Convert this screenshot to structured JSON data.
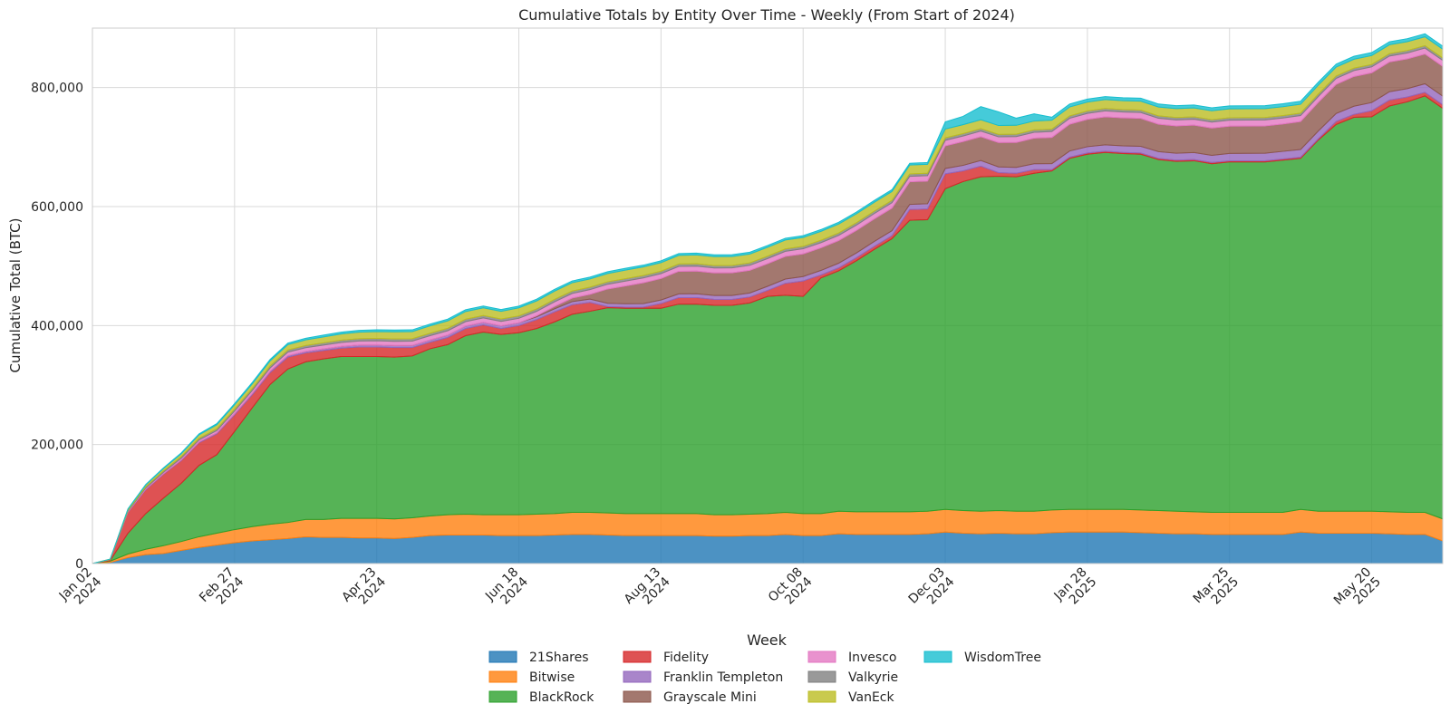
{
  "chart_data": {
    "type": "area",
    "stacked": true,
    "title": "Cumulative Totals by Entity Over Time - Weekly (From Start of 2024)",
    "xlabel": "Week",
    "ylabel": "Cumulative Total (BTC)",
    "ylim": [
      0,
      900000
    ],
    "yticks": [
      0,
      200000,
      400000,
      600000,
      800000
    ],
    "ytick_labels": [
      "0",
      "200,000",
      "400,000",
      "600,000",
      "800,000"
    ],
    "grid": true,
    "legend_position": "bottom-center",
    "x_tick_labels": [
      {
        "week": 0,
        "line1": "Jan 02",
        "line2": "2024"
      },
      {
        "week": 8,
        "line1": "Feb 27",
        "line2": "2024"
      },
      {
        "week": 16,
        "line1": "Apr 23",
        "line2": "2024"
      },
      {
        "week": 24,
        "line1": "Jun 18",
        "line2": "2024"
      },
      {
        "week": 32,
        "line1": "Aug 13",
        "line2": "2024"
      },
      {
        "week": 40,
        "line1": "Oct 08",
        "line2": "2024"
      },
      {
        "week": 48,
        "line1": "Dec 03",
        "line2": "2024"
      },
      {
        "week": 56,
        "line1": "Jan 28",
        "line2": "2025"
      },
      {
        "week": 64,
        "line1": "Mar 25",
        "line2": "2025"
      },
      {
        "week": 72,
        "line1": "May 20",
        "line2": "2025"
      }
    ],
    "weeks": 77,
    "series": [
      {
        "name": "21Shares",
        "color": "#1f77b4",
        "values": [
          0,
          2000,
          10000,
          15000,
          17000,
          22000,
          27000,
          31000,
          35000,
          38000,
          40000,
          42000,
          45000,
          44000,
          44000,
          43000,
          43000,
          42000,
          44000,
          47000,
          48000,
          48000,
          48000,
          47000,
          47000,
          47000,
          48000,
          49000,
          49000,
          48000,
          47000,
          47000,
          47000,
          47000,
          47000,
          46000,
          46000,
          47000,
          47000,
          49000,
          47000,
          47000,
          50000,
          49000,
          49000,
          49000,
          49000,
          50000,
          53000,
          51000,
          50000,
          51000,
          50000,
          50000,
          52000,
          53000,
          53000,
          53000,
          53000,
          52000,
          51000,
          50000,
          50000,
          49000,
          49000,
          49000,
          49000,
          49000,
          53000,
          51000,
          51000,
          51000,
          51000,
          50000,
          49000,
          49000,
          38000
        ]
      },
      {
        "name": "Bitwise",
        "color": "#ff7f0e",
        "values": [
          0,
          2000,
          6000,
          9000,
          13000,
          15000,
          18000,
          20000,
          22000,
          24000,
          26000,
          27000,
          29000,
          30000,
          32000,
          33000,
          33000,
          33000,
          33000,
          33000,
          34000,
          35000,
          34000,
          35000,
          35000,
          36000,
          36000,
          37000,
          37000,
          37000,
          37000,
          37000,
          37000,
          37000,
          37000,
          36000,
          36000,
          36000,
          37000,
          37000,
          37000,
          37000,
          38000,
          38000,
          38000,
          38000,
          38000,
          38000,
          38000,
          38000,
          38000,
          38000,
          38000,
          38000,
          38000,
          38000,
          38000,
          38000,
          38000,
          38000,
          38000,
          38000,
          37000,
          37000,
          37000,
          37000,
          37000,
          37000,
          38000,
          37000,
          37000,
          37000,
          37000,
          37000,
          37000,
          37000,
          37000
        ]
      },
      {
        "name": "BlackRock",
        "color": "#2ca02c",
        "values": [
          0,
          1000,
          35000,
          60000,
          80000,
          98000,
          120000,
          132000,
          165000,
          200000,
          235000,
          258000,
          265000,
          270000,
          272000,
          272000,
          272000,
          272000,
          272000,
          281000,
          286000,
          300000,
          307000,
          303000,
          306000,
          312000,
          322000,
          333000,
          338000,
          345000,
          345000,
          345000,
          345000,
          352000,
          352000,
          352000,
          352000,
          355000,
          365000,
          365000,
          365000,
          396000,
          404000,
          422000,
          441000,
          459000,
          490000,
          490000,
          539000,
          553000,
          562000,
          562000,
          562000,
          568000,
          570000,
          590000,
          597000,
          600000,
          598000,
          598000,
          590000,
          588000,
          590000,
          586000,
          589000,
          589000,
          589000,
          592000,
          590000,
          624000,
          650000,
          662000,
          663000,
          682000,
          690000,
          700000,
          690000
        ]
      },
      {
        "name": "Fidelity",
        "color": "#d62728",
        "values": [
          0,
          1500,
          35000,
          40000,
          40000,
          38000,
          38000,
          35000,
          28000,
          22000,
          20000,
          20000,
          15000,
          14000,
          14000,
          16000,
          16000,
          16000,
          14000,
          11000,
          12000,
          12000,
          12000,
          10000,
          12000,
          15000,
          17000,
          16000,
          15000,
          2000,
          2000,
          2000,
          8000,
          11000,
          11000,
          10000,
          10000,
          10000,
          10000,
          20000,
          26000,
          5000,
          5000,
          5000,
          5000,
          5000,
          18000,
          18000,
          25000,
          18000,
          18000,
          6000,
          6000,
          6000,
          2000,
          2000,
          2000,
          2000,
          2000,
          2000,
          2000,
          2000,
          2000,
          2000,
          2000,
          2000,
          2000,
          2000,
          2000,
          2000,
          5000,
          5000,
          10000,
          10000,
          8000,
          6000,
          6000
        ]
      },
      {
        "name": "Franklin Templeton",
        "color": "#9467bd",
        "values": [
          0,
          0,
          500,
          1000,
          1000,
          1200,
          1300,
          1500,
          1800,
          2000,
          2200,
          2400,
          2600,
          2800,
          3000,
          3200,
          3400,
          3500,
          3600,
          3800,
          4000,
          4200,
          4400,
          4500,
          4600,
          4800,
          5000,
          5200,
          5400,
          5500,
          5600,
          5800,
          6000,
          6200,
          6400,
          6500,
          6600,
          6800,
          7000,
          7200,
          7400,
          7600,
          7800,
          8000,
          8200,
          8400,
          8600,
          8800,
          9000,
          9200,
          9400,
          9600,
          9800,
          10000,
          10200,
          10400,
          10600,
          10800,
          11000,
          11200,
          11400,
          11600,
          11800,
          12000,
          12200,
          12400,
          12600,
          12800,
          13000,
          13200,
          13400,
          13600,
          13800,
          14000,
          14200,
          14400,
          14600
        ]
      },
      {
        "name": "Grayscale Mini",
        "color": "#8c564b",
        "values": [
          0,
          0,
          0,
          0,
          0,
          0,
          0,
          0,
          0,
          0,
          0,
          0,
          0,
          0,
          0,
          0,
          0,
          0,
          0,
          0,
          0,
          0,
          0,
          0,
          0,
          1500,
          4000,
          6000,
          8000,
          24000,
          30000,
          35000,
          36000,
          38000,
          38000,
          38000,
          38000,
          38000,
          38000,
          38000,
          38000,
          38000,
          38000,
          38000,
          38000,
          38000,
          38000,
          38000,
          38000,
          40000,
          40000,
          41000,
          42000,
          43000,
          44000,
          45000,
          46000,
          47000,
          47000,
          47000,
          46000,
          46000,
          46000,
          46000,
          46000,
          46000,
          46000,
          46000,
          47000,
          48000,
          49000,
          50000,
          50000,
          50000,
          50000,
          50000,
          50000
        ]
      },
      {
        "name": "Invesco",
        "color": "#e377c2",
        "values": [
          0,
          200,
          1500,
          2000,
          2500,
          3000,
          3500,
          4000,
          4500,
          5000,
          5500,
          6000,
          6200,
          6400,
          6600,
          6800,
          7000,
          7000,
          7200,
          7200,
          7400,
          7400,
          7500,
          7500,
          7600,
          7600,
          7800,
          7800,
          8000,
          8000,
          8200,
          8200,
          8300,
          8300,
          8400,
          8400,
          8500,
          8500,
          8600,
          8600,
          8700,
          8700,
          8800,
          8800,
          9000,
          9000,
          9200,
          9200,
          9400,
          9400,
          9600,
          9600,
          9800,
          9800,
          10000,
          10000,
          10000,
          10000,
          10000,
          10000,
          10000,
          10000,
          10000,
          10000,
          10000,
          10000,
          10000,
          10000,
          10000,
          10000,
          10000,
          10000,
          10000,
          10000,
          10000,
          10000,
          10000
        ]
      },
      {
        "name": "Valkyrie",
        "color": "#7f7f7f",
        "values": [
          0,
          200,
          1500,
          2000,
          2200,
          2400,
          2600,
          2800,
          3000,
          3200,
          3400,
          3500,
          3600,
          3700,
          3800,
          3900,
          4000,
          4000,
          4000,
          4000,
          4000,
          4000,
          4000,
          4000,
          4000,
          4000,
          4000,
          4000,
          4000,
          4000,
          4000,
          4000,
          4000,
          4000,
          4000,
          4000,
          4000,
          4000,
          4000,
          4000,
          4000,
          4000,
          4000,
          4000,
          4000,
          4000,
          4000,
          4000,
          4000,
          4000,
          4000,
          4000,
          4000,
          4000,
          4000,
          4000,
          4000,
          4000,
          4000,
          4000,
          4000,
          4000,
          4000,
          4000,
          4000,
          4000,
          4000,
          4000,
          4000,
          4000,
          4000,
          4000,
          4000,
          4000,
          4000,
          4000,
          4000
        ]
      },
      {
        "name": "VanEck",
        "color": "#bcbd22",
        "values": [
          0,
          500,
          2000,
          3000,
          4000,
          5000,
          6000,
          7000,
          7500,
          8000,
          8500,
          9000,
          9500,
          10000,
          10500,
          11000,
          11500,
          12000,
          12000,
          12500,
          12500,
          13000,
          13000,
          13000,
          13500,
          13500,
          14000,
          14000,
          14000,
          14000,
          14500,
          14500,
          14500,
          14500,
          15000,
          15000,
          15000,
          15000,
          15000,
          15000,
          15000,
          15000,
          15000,
          15000,
          15000,
          15000,
          15000,
          15000,
          15000,
          15000,
          15000,
          15000,
          15000,
          15000,
          15000,
          15000,
          15000,
          15000,
          15000,
          15000,
          15000,
          15000,
          15000,
          15000,
          15000,
          15000,
          15000,
          15000,
          15000,
          15000,
          15000,
          15000,
          15000,
          15000,
          15000,
          15000,
          15000
        ]
      },
      {
        "name": "WisdomTree",
        "color": "#17becf",
        "values": [
          0,
          100,
          500,
          1000,
          1200,
          1400,
          1600,
          1800,
          2000,
          2200,
          2400,
          2600,
          2800,
          3000,
          3000,
          3000,
          3000,
          3000,
          3000,
          3000,
          3000,
          3000,
          3000,
          3000,
          3000,
          3000,
          3000,
          3000,
          3000,
          3000,
          3000,
          3000,
          3000,
          3000,
          3000,
          3000,
          3000,
          3000,
          3000,
          3000,
          3000,
          3000,
          3000,
          3000,
          3000,
          3000,
          3000,
          3000,
          12000,
          14000,
          22000,
          23000,
          12000,
          12000,
          5000,
          5000,
          5000,
          5000,
          5000,
          5000,
          5000,
          5000,
          5000,
          5000,
          5000,
          5000,
          5000,
          5000,
          5000,
          5000,
          5000,
          5000,
          5000,
          5000,
          5000,
          5000,
          5000
        ]
      }
    ]
  }
}
